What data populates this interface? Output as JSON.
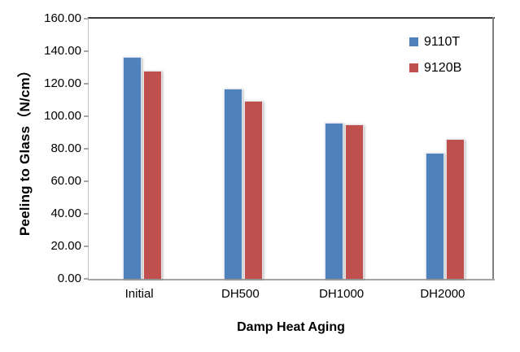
{
  "chart_data": {
    "type": "bar",
    "categories": [
      "Initial",
      "DH500",
      "DH1000",
      "DH2000"
    ],
    "series": [
      {
        "name": "9110T",
        "color": "#4F81BD",
        "values": [
          136.5,
          116.8,
          96.0,
          77.4
        ]
      },
      {
        "name": "9120B",
        "color": "#C0504D",
        "values": [
          128.2,
          109.5,
          94.9,
          86.0
        ]
      }
    ],
    "xlabel": "Damp Heat Aging",
    "ylabel": "Peeling to Glass（N/cm）",
    "ylim": [
      0,
      160
    ],
    "ytick_step": 20,
    "ytick_labels": [
      "0.00",
      "20.00",
      "40.00",
      "60.00",
      "80.00",
      "100.00",
      "120.00",
      "140.00",
      "160.00"
    ],
    "grid": false,
    "legend_position": "top-right-inside"
  },
  "colors": {
    "series_9110T": "#4F81BD",
    "series_9120B": "#C0504D",
    "axis_line": "#A6A6A6",
    "plot_border_top": "#3A3A3A",
    "plot_border_right": "#808080",
    "text": "#000000"
  }
}
